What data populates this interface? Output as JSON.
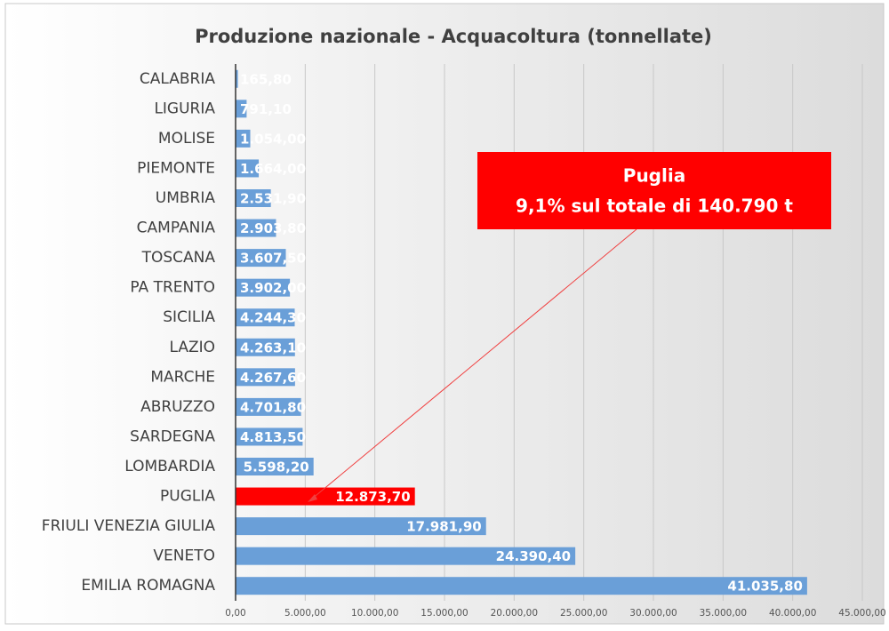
{
  "chart_data": {
    "type": "barh",
    "title": "Produzione nazionale - Acquacoltura (tonnellate)",
    "categories": [
      "CALABRIA",
      "LIGURIA",
      "MOLISE",
      "PIEMONTE",
      "UMBRIA",
      "CAMPANIA",
      "TOSCANA",
      "PA TRENTO",
      "SICILIA",
      "LAZIO",
      "MARCHE",
      "ABRUZZO",
      "SARDEGNA",
      "LOMBARDIA",
      "PUGLIA",
      "FRIULI VENEZIA GIULIA",
      "VENETO",
      "EMILIA ROMAGNA"
    ],
    "values": [
      165.8,
      791.1,
      1054,
      1664,
      2531.9,
      2903.8,
      3607.5,
      3902,
      4244.3,
      4263.1,
      4267.6,
      4701.8,
      4813.5,
      5598.2,
      12873.7,
      17981.9,
      24390.4,
      41035.8
    ],
    "value_labels": [
      "165,80",
      "791,10",
      "1.054,00",
      "1.664,00",
      "2.531,90",
      "2.903,80",
      "3.607,50",
      "3.902,00",
      "4.244,30",
      "4.263,10",
      "4.267,60",
      "4.701,80",
      "4.813,50",
      "5.598,20",
      "12.873,70",
      "17.981,90",
      "24.390,40",
      "41.035,80"
    ],
    "colors": [
      "#6a9fd8",
      "#6a9fd8",
      "#6a9fd8",
      "#6a9fd8",
      "#6a9fd8",
      "#6a9fd8",
      "#6a9fd8",
      "#6a9fd8",
      "#6a9fd8",
      "#6a9fd8",
      "#6a9fd8",
      "#6a9fd8",
      "#6a9fd8",
      "#6a9fd8",
      "#ff0000",
      "#6a9fd8",
      "#6a9fd8",
      "#6a9fd8"
    ],
    "xlim": [
      0,
      45000
    ],
    "xticks": [
      {
        "value": 0,
        "label": "0,00"
      },
      {
        "value": 5000,
        "label": "5.000,00"
      },
      {
        "value": 10000,
        "label": "10.000,00"
      },
      {
        "value": 15000,
        "label": "15.000,00"
      },
      {
        "value": 20000,
        "label": "20.000,00"
      },
      {
        "value": 25000,
        "label": "25.000,00"
      },
      {
        "value": 30000,
        "label": "30.000,00"
      },
      {
        "value": 35000,
        "label": "35.000,00"
      },
      {
        "value": 40000,
        "label": "40.000,00"
      },
      {
        "value": 45000,
        "label": "45.000,00"
      }
    ],
    "grid": true,
    "annotation": [
      "Puglia",
      "9,1% sul totale di 140.790 t"
    ]
  }
}
